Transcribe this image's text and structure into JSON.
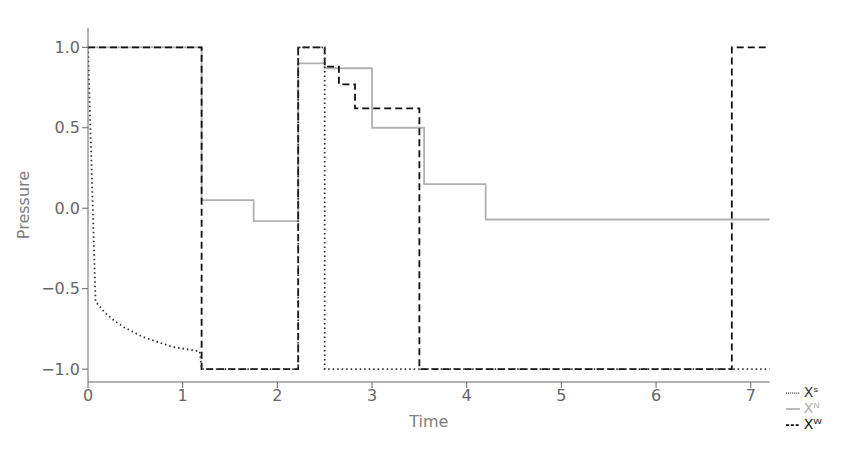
{
  "chart_data": {
    "type": "line",
    "xlabel": "Time",
    "ylabel": "Pressure",
    "xlim": [
      0,
      7.2
    ],
    "ylim": [
      -1.08,
      1.12
    ],
    "xticks": [
      0,
      1,
      2,
      3,
      4,
      5,
      6,
      7
    ],
    "yticks": [
      {
        "value": -1,
        "label": "−1.0"
      },
      {
        "value": -0.5,
        "label": "−0.5"
      },
      {
        "value": 0,
        "label": "0.0"
      },
      0.5,
      {
        "value": 1,
        "label": "1.0"
      }
    ],
    "grid": false,
    "legend": "lower right",
    "series": [
      {
        "name": "Xᴺ",
        "color": "#b0b0b0",
        "line_style": "solid",
        "x": [
          0,
          1.2,
          1.2,
          1.75,
          1.75,
          2.22,
          2.22,
          2.5,
          2.5,
          3.0,
          3.0,
          3.55,
          3.55,
          4.2,
          4.2,
          6.8,
          6.8,
          7.2
        ],
        "values": [
          1.0,
          1.0,
          0.05,
          0.05,
          -0.08,
          -0.08,
          0.9,
          0.9,
          0.87,
          0.87,
          0.5,
          0.5,
          0.15,
          0.15,
          -0.07,
          -0.07,
          -0.07,
          -0.07
        ]
      },
      {
        "name": "Xᵂ",
        "color": "#111111",
        "line_style": "dashed",
        "x": [
          0,
          1.2,
          1.2,
          2.22,
          2.22,
          2.5,
          2.5,
          2.65,
          2.65,
          2.82,
          2.82,
          3.0,
          3.0,
          3.2,
          3.2,
          3.5,
          3.5,
          6.8,
          6.8,
          7.2
        ],
        "values": [
          1.0,
          1.0,
          -1.0,
          -1.0,
          1.0,
          1.0,
          0.88,
          0.88,
          0.77,
          0.77,
          0.62,
          0.62,
          0.62,
          0.62,
          0.62,
          0.62,
          -1.0,
          -1.0,
          1.0,
          1.0
        ]
      },
      {
        "name": "Xˢ",
        "color": "#333333",
        "line_style": "dotted",
        "x": [
          0.0,
          0.08,
          0.18,
          0.28,
          0.38,
          0.48,
          0.58,
          0.68,
          0.78,
          0.88,
          0.98,
          1.08,
          1.18,
          1.2,
          2.22,
          2.22,
          2.5,
          2.5,
          7.2
        ],
        "values": [
          1.0,
          -0.58,
          -0.65,
          -0.7,
          -0.74,
          -0.77,
          -0.8,
          -0.82,
          -0.84,
          -0.86,
          -0.87,
          -0.88,
          -0.89,
          -1.0,
          -1.0,
          1.0,
          1.0,
          -1.0,
          -1.0
        ]
      }
    ]
  }
}
